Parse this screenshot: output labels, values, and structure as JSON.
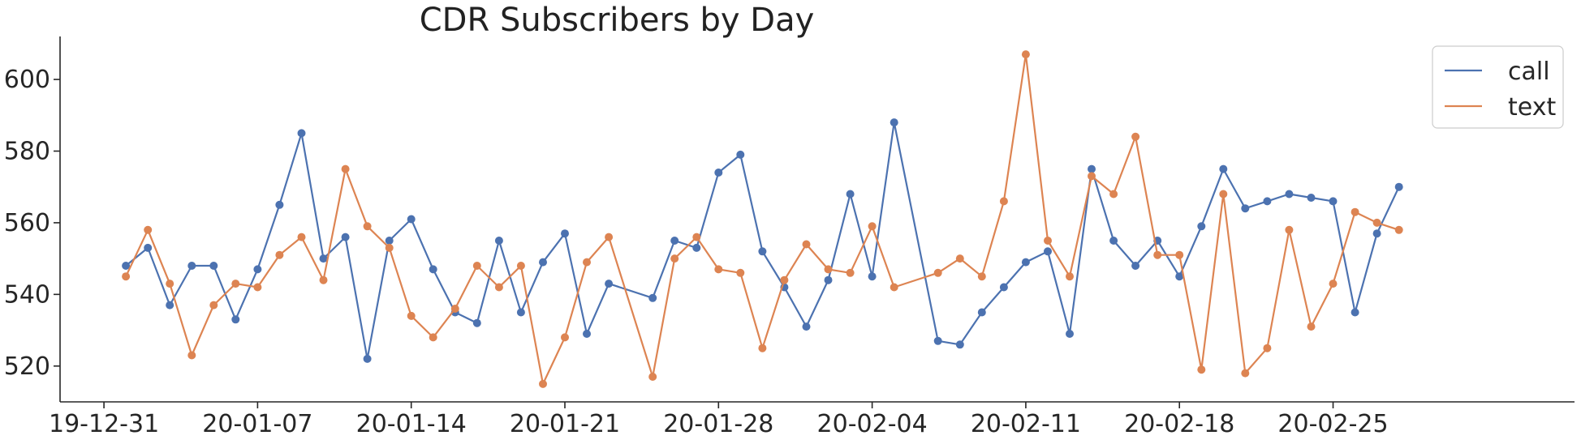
{
  "chart_data": {
    "type": "line",
    "title": "CDR Subscribers by Day",
    "xlabel": "",
    "ylabel": "",
    "x_axis": "date",
    "xlim": [
      "2019-12-29",
      "2020-03-07"
    ],
    "ylim": [
      510,
      612
    ],
    "x_ticks": [
      {
        "date": "2019-12-31",
        "label": "19-12-31"
      },
      {
        "date": "2020-01-07",
        "label": "20-01-07"
      },
      {
        "date": "2020-01-14",
        "label": "20-01-14"
      },
      {
        "date": "2020-01-21",
        "label": "20-01-21"
      },
      {
        "date": "2020-01-28",
        "label": "20-01-28"
      },
      {
        "date": "2020-02-04",
        "label": "20-02-04"
      },
      {
        "date": "2020-02-11",
        "label": "20-02-11"
      },
      {
        "date": "2020-02-18",
        "label": "20-02-18"
      },
      {
        "date": "2020-02-25",
        "label": "20-02-25"
      }
    ],
    "y_ticks": [
      {
        "value": 520,
        "label": "520"
      },
      {
        "value": 540,
        "label": "540"
      },
      {
        "value": 560,
        "label": "560"
      },
      {
        "value": 580,
        "label": "580"
      },
      {
        "value": 600,
        "label": "600"
      }
    ],
    "grid": false,
    "legend_position": "top-right",
    "series": [
      {
        "name": "call",
        "color": "#4c72b0",
        "points": [
          {
            "x": "2020-01-01",
            "y": 548
          },
          {
            "x": "2020-01-02",
            "y": 553
          },
          {
            "x": "2020-01-03",
            "y": 537
          },
          {
            "x": "2020-01-04",
            "y": 548
          },
          {
            "x": "2020-01-05",
            "y": 548
          },
          {
            "x": "2020-01-06",
            "y": 533
          },
          {
            "x": "2020-01-07",
            "y": 547
          },
          {
            "x": "2020-01-08",
            "y": 565
          },
          {
            "x": "2020-01-09",
            "y": 585
          },
          {
            "x": "2020-01-10",
            "y": 550
          },
          {
            "x": "2020-01-11",
            "y": 556
          },
          {
            "x": "2020-01-12",
            "y": 522
          },
          {
            "x": "2020-01-13",
            "y": 555
          },
          {
            "x": "2020-01-14",
            "y": 561
          },
          {
            "x": "2020-01-15",
            "y": 547
          },
          {
            "x": "2020-01-16",
            "y": 535
          },
          {
            "x": "2020-01-17",
            "y": 532
          },
          {
            "x": "2020-01-18",
            "y": 555
          },
          {
            "x": "2020-01-19",
            "y": 535
          },
          {
            "x": "2020-01-20",
            "y": 549
          },
          {
            "x": "2020-01-21",
            "y": 557
          },
          {
            "x": "2020-01-22",
            "y": 529
          },
          {
            "x": "2020-01-23",
            "y": 543
          },
          {
            "x": "2020-01-25",
            "y": 539
          },
          {
            "x": "2020-01-26",
            "y": 555
          },
          {
            "x": "2020-01-27",
            "y": 553
          },
          {
            "x": "2020-01-28",
            "y": 574
          },
          {
            "x": "2020-01-29",
            "y": 579
          },
          {
            "x": "2020-01-30",
            "y": 552
          },
          {
            "x": "2020-01-31",
            "y": 542
          },
          {
            "x": "2020-02-01",
            "y": 531
          },
          {
            "x": "2020-02-02",
            "y": 544
          },
          {
            "x": "2020-02-03",
            "y": 568
          },
          {
            "x": "2020-02-04",
            "y": 545
          },
          {
            "x": "2020-02-05",
            "y": 588
          },
          {
            "x": "2020-02-07",
            "y": 527
          },
          {
            "x": "2020-02-08",
            "y": 526
          },
          {
            "x": "2020-02-09",
            "y": 535
          },
          {
            "x": "2020-02-10",
            "y": 542
          },
          {
            "x": "2020-02-11",
            "y": 549
          },
          {
            "x": "2020-02-12",
            "y": 552
          },
          {
            "x": "2020-02-13",
            "y": 529
          },
          {
            "x": "2020-02-14",
            "y": 575
          },
          {
            "x": "2020-02-15",
            "y": 555
          },
          {
            "x": "2020-02-16",
            "y": 548
          },
          {
            "x": "2020-02-17",
            "y": 555
          },
          {
            "x": "2020-02-18",
            "y": 545
          },
          {
            "x": "2020-02-19",
            "y": 559
          },
          {
            "x": "2020-02-20",
            "y": 575
          },
          {
            "x": "2020-02-21",
            "y": 564
          },
          {
            "x": "2020-02-22",
            "y": 566
          },
          {
            "x": "2020-02-23",
            "y": 568
          },
          {
            "x": "2020-02-24",
            "y": 567
          },
          {
            "x": "2020-02-25",
            "y": 566
          },
          {
            "x": "2020-02-26",
            "y": 535
          },
          {
            "x": "2020-02-27",
            "y": 557
          },
          {
            "x": "2020-02-28",
            "y": 570
          }
        ]
      },
      {
        "name": "text",
        "color": "#dd8452",
        "points": [
          {
            "x": "2020-01-01",
            "y": 545
          },
          {
            "x": "2020-01-02",
            "y": 558
          },
          {
            "x": "2020-01-03",
            "y": 543
          },
          {
            "x": "2020-01-04",
            "y": 523
          },
          {
            "x": "2020-01-05",
            "y": 537
          },
          {
            "x": "2020-01-06",
            "y": 543
          },
          {
            "x": "2020-01-07",
            "y": 542
          },
          {
            "x": "2020-01-08",
            "y": 551
          },
          {
            "x": "2020-01-09",
            "y": 556
          },
          {
            "x": "2020-01-10",
            "y": 544
          },
          {
            "x": "2020-01-11",
            "y": 575
          },
          {
            "x": "2020-01-12",
            "y": 559
          },
          {
            "x": "2020-01-13",
            "y": 553
          },
          {
            "x": "2020-01-14",
            "y": 534
          },
          {
            "x": "2020-01-15",
            "y": 528
          },
          {
            "x": "2020-01-16",
            "y": 536
          },
          {
            "x": "2020-01-17",
            "y": 548
          },
          {
            "x": "2020-01-18",
            "y": 542
          },
          {
            "x": "2020-01-19",
            "y": 548
          },
          {
            "x": "2020-01-20",
            "y": 515
          },
          {
            "x": "2020-01-21",
            "y": 528
          },
          {
            "x": "2020-01-22",
            "y": 549
          },
          {
            "x": "2020-01-23",
            "y": 556
          },
          {
            "x": "2020-01-25",
            "y": 517
          },
          {
            "x": "2020-01-26",
            "y": 550
          },
          {
            "x": "2020-01-27",
            "y": 556
          },
          {
            "x": "2020-01-28",
            "y": 547
          },
          {
            "x": "2020-01-29",
            "y": 546
          },
          {
            "x": "2020-01-30",
            "y": 525
          },
          {
            "x": "2020-01-31",
            "y": 544
          },
          {
            "x": "2020-02-01",
            "y": 554
          },
          {
            "x": "2020-02-02",
            "y": 547
          },
          {
            "x": "2020-02-03",
            "y": 546
          },
          {
            "x": "2020-02-04",
            "y": 559
          },
          {
            "x": "2020-02-05",
            "y": 542
          },
          {
            "x": "2020-02-07",
            "y": 546
          },
          {
            "x": "2020-02-08",
            "y": 550
          },
          {
            "x": "2020-02-09",
            "y": 545
          },
          {
            "x": "2020-02-10",
            "y": 566
          },
          {
            "x": "2020-02-11",
            "y": 607
          },
          {
            "x": "2020-02-12",
            "y": 555
          },
          {
            "x": "2020-02-13",
            "y": 545
          },
          {
            "x": "2020-02-14",
            "y": 573
          },
          {
            "x": "2020-02-15",
            "y": 568
          },
          {
            "x": "2020-02-16",
            "y": 584
          },
          {
            "x": "2020-02-17",
            "y": 551
          },
          {
            "x": "2020-02-18",
            "y": 551
          },
          {
            "x": "2020-02-19",
            "y": 519
          },
          {
            "x": "2020-02-20",
            "y": 568
          },
          {
            "x": "2020-02-21",
            "y": 518
          },
          {
            "x": "2020-02-22",
            "y": 525
          },
          {
            "x": "2020-02-23",
            "y": 558
          },
          {
            "x": "2020-02-24",
            "y": 531
          },
          {
            "x": "2020-02-25",
            "y": 543
          },
          {
            "x": "2020-02-26",
            "y": 563
          },
          {
            "x": "2020-02-27",
            "y": 560
          },
          {
            "x": "2020-02-28",
            "y": 558
          }
        ]
      }
    ]
  }
}
